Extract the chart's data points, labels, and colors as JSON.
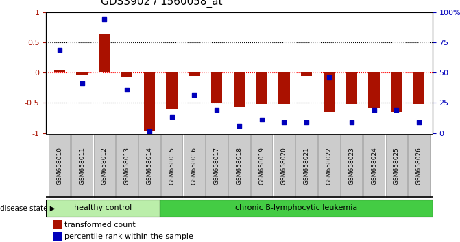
{
  "title": "GDS3902 / 1560058_at",
  "samples": [
    "GSM658010",
    "GSM658011",
    "GSM658012",
    "GSM658013",
    "GSM658014",
    "GSM658015",
    "GSM658016",
    "GSM658017",
    "GSM658018",
    "GSM658019",
    "GSM658020",
    "GSM658021",
    "GSM658022",
    "GSM658023",
    "GSM658024",
    "GSM658025",
    "GSM658026"
  ],
  "bar_values": [
    0.05,
    -0.03,
    0.63,
    -0.07,
    -0.97,
    -0.6,
    -0.05,
    -0.5,
    -0.57,
    -0.52,
    -0.52,
    -0.05,
    -0.65,
    -0.52,
    -0.58,
    -0.65,
    -0.52
  ],
  "scatter_values": [
    0.38,
    -0.18,
    0.88,
    -0.28,
    -0.97,
    -0.73,
    -0.37,
    -0.62,
    -0.88,
    -0.78,
    -0.82,
    -0.82,
    -0.08,
    -0.82,
    -0.62,
    -0.62,
    -0.82
  ],
  "bar_color": "#AA1100",
  "scatter_color": "#0000BB",
  "healthy_control_count": 5,
  "group_labels": [
    "healthy control",
    "chronic B-lymphocytic leukemia"
  ],
  "group_colors": [
    "#BBEEAA",
    "#44CC44"
  ],
  "disease_state_label": "disease state",
  "legend_bar": "transformed count",
  "legend_scatter": "percentile rank within the sample",
  "ylim": [
    -1,
    1
  ],
  "left_tick_labels": [
    "-1",
    "-0.5",
    "0",
    "0.5",
    "1"
  ],
  "left_tick_vals": [
    -1,
    -0.5,
    0,
    0.5,
    1
  ],
  "right_tick_vals": [
    -1,
    -0.5,
    0,
    0.5,
    1
  ],
  "right_tick_labels": [
    "0",
    "25",
    "50",
    "75",
    "100%"
  ],
  "background_color": "#FFFFFF",
  "axes_bg_color": "#FFFFFF",
  "box_bg_color": "#CCCCCC",
  "title_fontsize": 11
}
